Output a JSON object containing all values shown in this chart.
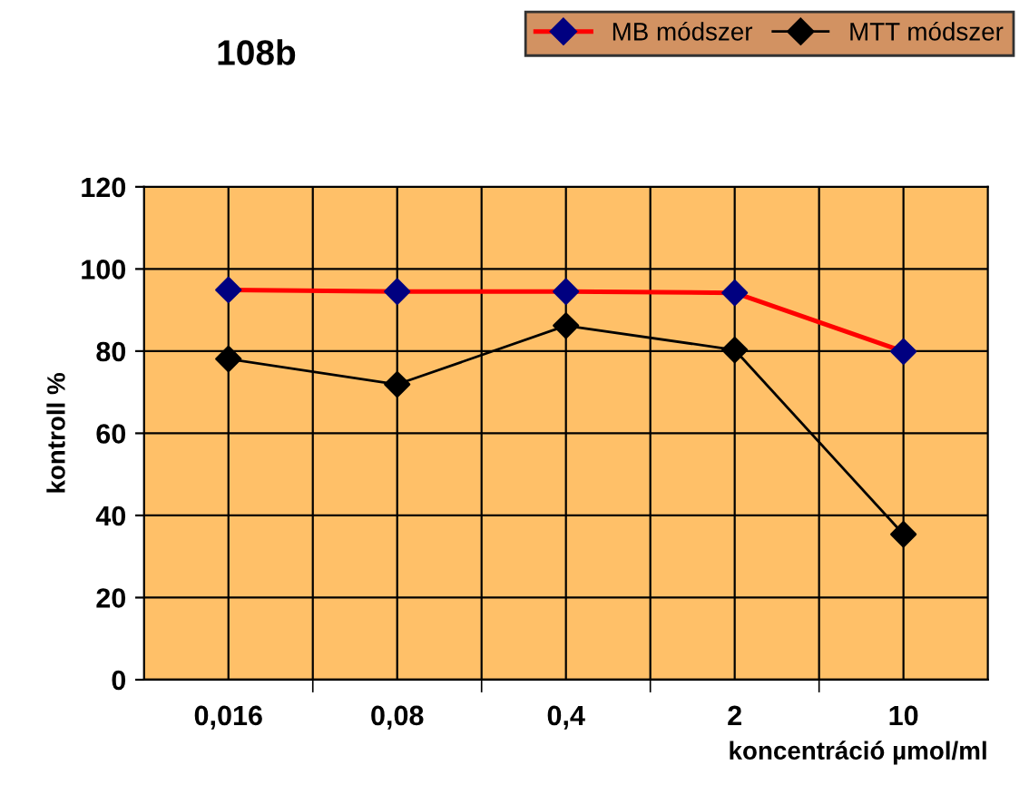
{
  "chart_data": {
    "type": "line",
    "title": "108b",
    "xlabel": "koncentráció µmol/ml",
    "ylabel": "kontroll %",
    "categories": [
      "0,016",
      "0,08",
      "0,4",
      "2",
      "10"
    ],
    "series": [
      {
        "name": "MB módszer",
        "color": "#ff0000",
        "colors": [
          "#000080",
          "#000080",
          "#000080",
          "#000080",
          "#000080"
        ],
        "values": [
          94.9,
          94.5,
          94.5,
          94.2,
          79.9
        ]
      },
      {
        "name": "MTT módszer",
        "color": "#000000",
        "values": [
          78.1,
          71.9,
          86.2,
          80.3,
          35.4
        ]
      }
    ],
    "ylim": [
      0,
      120
    ],
    "yticks": [
      0,
      20,
      40,
      60,
      80,
      100,
      120
    ],
    "grid": true,
    "legend": "top right",
    "marker": "diamond",
    "line_style": "solid"
  }
}
